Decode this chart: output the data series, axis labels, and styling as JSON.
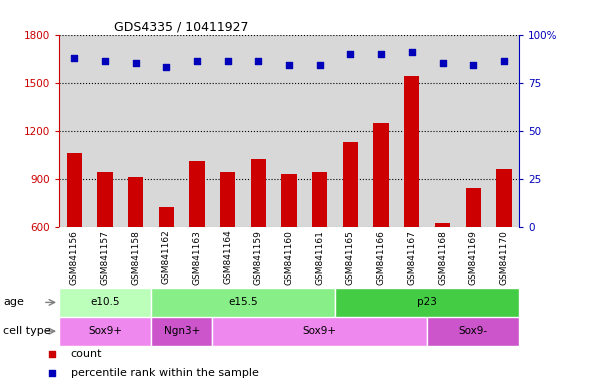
{
  "title": "GDS4335 / 10411927",
  "samples": [
    "GSM841156",
    "GSM841157",
    "GSM841158",
    "GSM841162",
    "GSM841163",
    "GSM841164",
    "GSM841159",
    "GSM841160",
    "GSM841161",
    "GSM841165",
    "GSM841166",
    "GSM841167",
    "GSM841168",
    "GSM841169",
    "GSM841170"
  ],
  "counts": [
    1060,
    940,
    910,
    720,
    1010,
    940,
    1020,
    930,
    940,
    1130,
    1250,
    1540,
    620,
    840,
    960
  ],
  "percentile_ranks": [
    88,
    86,
    85,
    83,
    86,
    86,
    86,
    84,
    84,
    90,
    90,
    91,
    85,
    84,
    86
  ],
  "ylim_left": [
    600,
    1800
  ],
  "ylim_right": [
    0,
    100
  ],
  "yticks_left": [
    600,
    900,
    1200,
    1500,
    1800
  ],
  "yticks_right": [
    0,
    25,
    50,
    75,
    100
  ],
  "bar_color": "#cc0000",
  "dot_color": "#0000bb",
  "age_groups": [
    {
      "label": "e10.5",
      "start": 0,
      "end": 3,
      "color": "#bbffbb"
    },
    {
      "label": "e15.5",
      "start": 3,
      "end": 9,
      "color": "#88ee88"
    },
    {
      "label": "p23",
      "start": 9,
      "end": 15,
      "color": "#44cc44"
    }
  ],
  "cell_type_groups": [
    {
      "label": "Sox9+",
      "start": 0,
      "end": 3,
      "color": "#ee88ee"
    },
    {
      "label": "Ngn3+",
      "start": 3,
      "end": 5,
      "color": "#cc55cc"
    },
    {
      "label": "Sox9+",
      "start": 5,
      "end": 12,
      "color": "#ee88ee"
    },
    {
      "label": "Sox9-",
      "start": 12,
      "end": 15,
      "color": "#cc55cc"
    }
  ],
  "age_label": "age",
  "cell_type_label": "cell type",
  "legend_count": "count",
  "legend_pct": "percentile rank within the sample",
  "plot_bg": "#d8d8d8",
  "bar_width": 0.5
}
